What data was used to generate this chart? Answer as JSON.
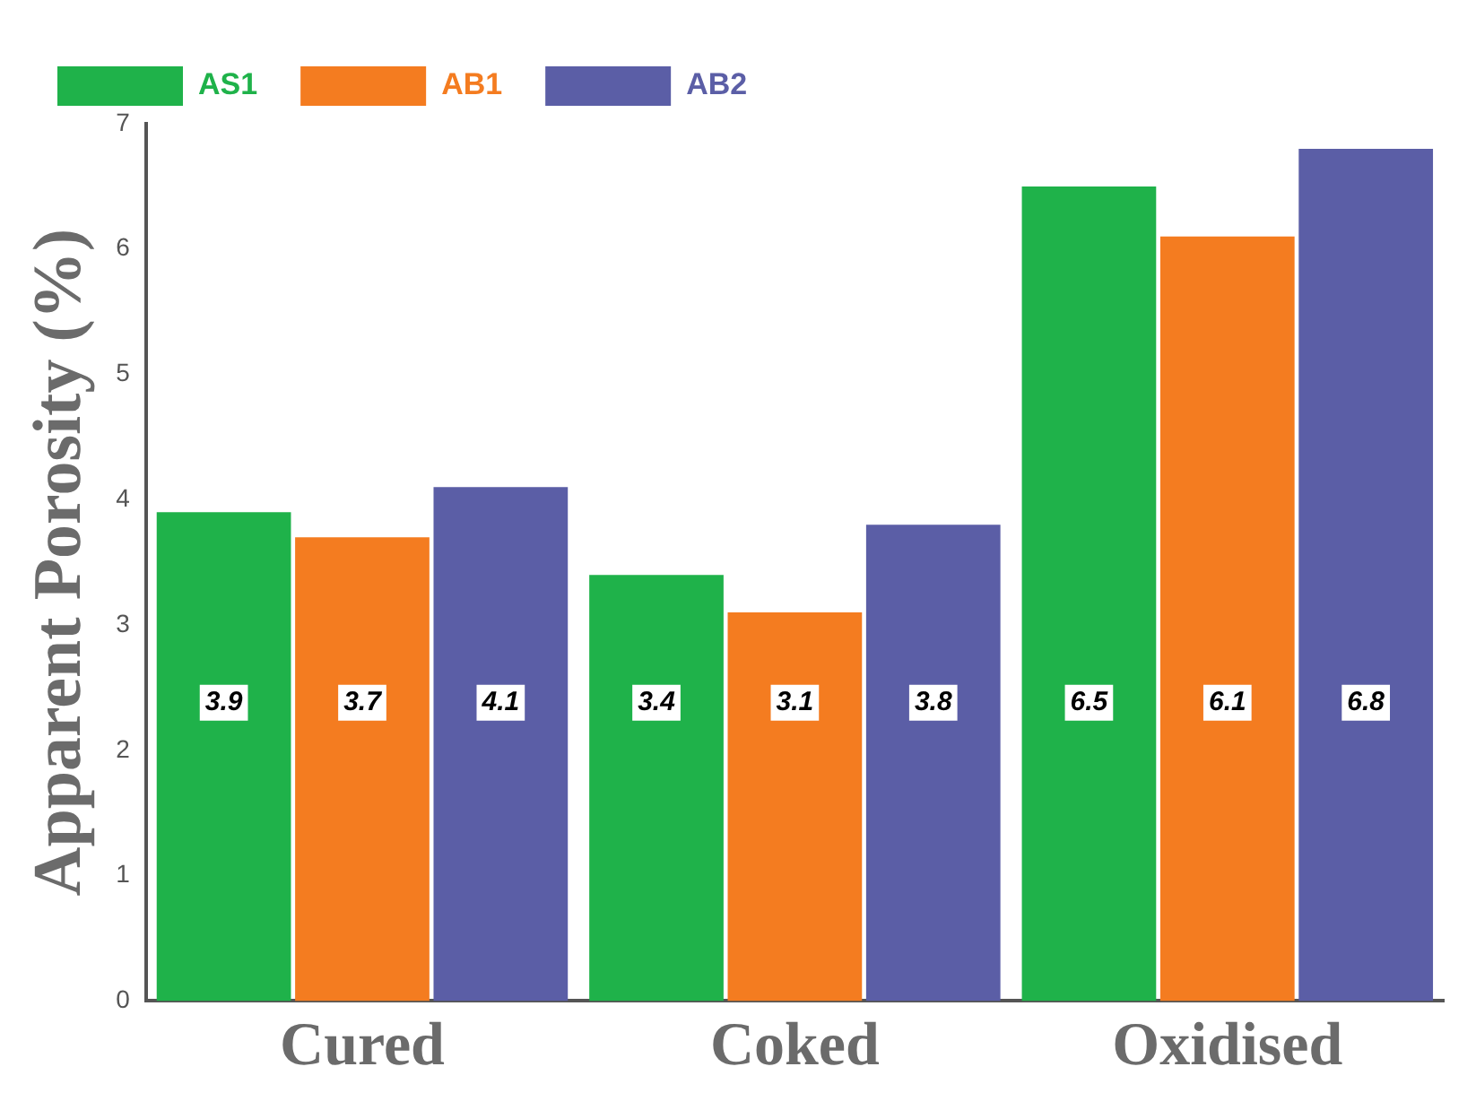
{
  "chart_data": {
    "type": "bar",
    "ylabel": "Apparent Porosity (%)",
    "categories": [
      "Cured",
      "Coked",
      "Oxidised"
    ],
    "series": [
      {
        "name": "AS1",
        "color": "#1fb24a",
        "values": [
          3.9,
          3.4,
          6.5
        ]
      },
      {
        "name": "AB1",
        "color": "#f47c20",
        "values": [
          3.7,
          3.1,
          6.1
        ]
      },
      {
        "name": "AB2",
        "color": "#5b5ea6",
        "values": [
          4.1,
          3.8,
          6.8
        ]
      }
    ],
    "ylim": [
      0,
      7
    ],
    "yticks": [
      0,
      1,
      2,
      3,
      4,
      5,
      6,
      7
    ],
    "grid": false,
    "legend": "top left",
    "data_labels": true
  }
}
